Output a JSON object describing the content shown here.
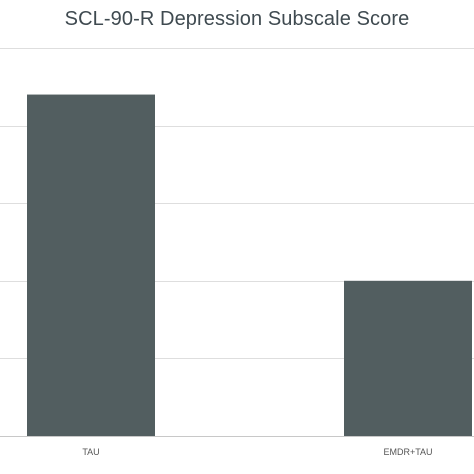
{
  "chart_data": {
    "type": "bar",
    "title": "SCL-90-R Depression Subscale Score",
    "categories": [
      "TAU",
      "EMDR+TAU"
    ],
    "series": [
      {
        "values": [
          2.2,
          1.0
        ]
      }
    ],
    "xlabel": "",
    "ylabel": "",
    "ylim": [
      0,
      2.5
    ],
    "grid": true,
    "legend": "none",
    "bar_color": "#525e60",
    "grid_color": "#dedede"
  }
}
